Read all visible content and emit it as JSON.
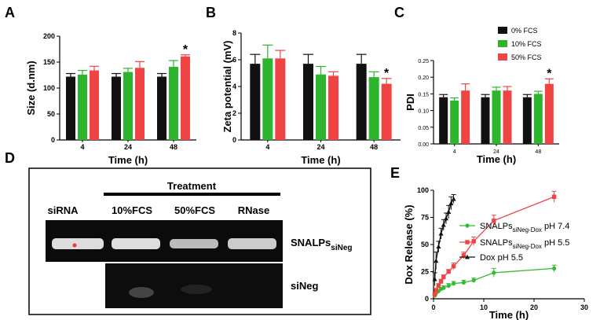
{
  "colors": {
    "fcs0": "#111111",
    "fcs10": "#2db52d",
    "fcs50": "#ee4444",
    "err": "#000000",
    "ph74": "#33bb33",
    "ph55": "#ee4444",
    "dox": "#111111"
  },
  "legend_abc": [
    "0% FCS",
    "10% FCS",
    "50% FCS"
  ],
  "chart_data": [
    {
      "panel": "A",
      "type": "bar",
      "xlabel": "Time (h)",
      "ylabel": "Size (d.nm)",
      "categories": [
        "4",
        "24",
        "48"
      ],
      "ylim": [
        0,
        200
      ],
      "yticks": [
        0,
        50,
        100,
        150,
        200
      ],
      "series": [
        {
          "name": "0% FCS",
          "values": [
            122,
            122,
            122
          ],
          "errors": [
            6,
            6,
            6
          ]
        },
        {
          "name": "10% FCS",
          "values": [
            126,
            131,
            141
          ],
          "errors": [
            8,
            7,
            12
          ]
        },
        {
          "name": "50% FCS",
          "values": [
            134,
            139,
            161
          ],
          "errors": [
            8,
            12,
            3
          ]
        }
      ],
      "annotation": {
        "text": "*",
        "category": "48",
        "series": "50% FCS"
      }
    },
    {
      "panel": "B",
      "type": "bar",
      "xlabel": "Time (h)",
      "ylabel": "Zeta potential (mV)",
      "categories": [
        "4",
        "24",
        "48"
      ],
      "ylim": [
        0,
        8
      ],
      "yticks": [
        0,
        2,
        4,
        6,
        8
      ],
      "series": [
        {
          "name": "0% FCS",
          "values": [
            5.7,
            5.7,
            5.7
          ],
          "errors": [
            0.7,
            0.7,
            0.7
          ]
        },
        {
          "name": "10% FCS",
          "values": [
            6.1,
            4.9,
            4.7
          ],
          "errors": [
            1.0,
            0.6,
            0.4
          ]
        },
        {
          "name": "50% FCS",
          "values": [
            6.1,
            4.8,
            4.2
          ],
          "errors": [
            0.6,
            0.3,
            0.4
          ]
        }
      ],
      "annotation": {
        "text": "*",
        "category": "48",
        "series": "50% FCS"
      }
    },
    {
      "panel": "C",
      "type": "bar",
      "xlabel": "Time (h)",
      "ylabel": "PDI",
      "categories": [
        "4",
        "24",
        "48"
      ],
      "ylim": [
        0,
        0.25
      ],
      "yticks": [
        0,
        0.05,
        0.1,
        0.15,
        0.2,
        0.25
      ],
      "ytick_labels": [
        "0.00",
        "0.05",
        "0.10",
        "0.15",
        "0.20",
        "0.25"
      ],
      "series": [
        {
          "name": "0% FCS",
          "values": [
            0.14,
            0.14,
            0.14
          ],
          "errors": [
            0.008,
            0.008,
            0.008
          ]
        },
        {
          "name": "10% FCS",
          "values": [
            0.13,
            0.16,
            0.15
          ],
          "errors": [
            0.008,
            0.01,
            0.008
          ]
        },
        {
          "name": "50% FCS",
          "values": [
            0.16,
            0.16,
            0.18
          ],
          "errors": [
            0.02,
            0.012,
            0.015
          ]
        }
      ],
      "annotation": {
        "text": "*",
        "category": "48",
        "series": "50% FCS"
      }
    },
    {
      "panel": "E",
      "type": "line",
      "xlabel": "Time (h)",
      "ylabel": "Dox Release (%)",
      "xlim": [
        0,
        30
      ],
      "ylim": [
        0,
        100
      ],
      "xticks": [
        0,
        10,
        20,
        30
      ],
      "yticks": [
        0,
        25,
        50,
        75,
        100
      ],
      "series": [
        {
          "name": "SNALPs pH 7.4",
          "label_main": "SNALPs",
          "label_sub": "siNeg-Dox",
          "label_suffix": " pH 7.4",
          "marker": "circle",
          "x": [
            0.25,
            0.5,
            1,
            1.5,
            2,
            3,
            4,
            6,
            8,
            12,
            24
          ],
          "y": [
            3,
            5,
            7,
            9,
            10,
            12,
            14,
            15,
            17,
            24,
            28
          ],
          "errors": [
            1,
            1,
            1,
            1,
            2,
            2,
            2,
            2,
            2,
            4,
            3
          ]
        },
        {
          "name": "SNALPs pH 5.5",
          "label_main": "SNALPs",
          "label_sub": "siNeg-Dox",
          "label_suffix": " pH 5.5",
          "marker": "square",
          "x": [
            0.25,
            0.5,
            1,
            1.5,
            2,
            3,
            4,
            6,
            8,
            12,
            24
          ],
          "y": [
            4,
            8,
            12,
            16,
            20,
            25,
            30,
            40,
            53,
            72,
            94
          ],
          "errors": [
            1,
            1,
            2,
            2,
            2,
            2,
            3,
            3,
            4,
            5,
            5
          ]
        },
        {
          "name": "Dox pH 5.5",
          "label_main": "Dox pH 5.5",
          "label_sub": "",
          "label_suffix": "",
          "marker": "triangle",
          "x": [
            0.25,
            0.5,
            1,
            1.5,
            2,
            2.5,
            3,
            3.5,
            4
          ],
          "y": [
            18,
            35,
            48,
            60,
            68,
            74,
            80,
            88,
            92
          ],
          "errors": [
            6,
            8,
            5,
            5,
            5,
            5,
            6,
            6,
            4
          ]
        }
      ]
    }
  ],
  "panel_d": {
    "letter": "D",
    "header": "Treatment",
    "lanes": [
      "siRNA",
      "10%FCS",
      "50%FCS",
      "RNase"
    ],
    "row_labels": [
      {
        "main": "SNALPs",
        "sub": "siNeg"
      },
      {
        "main": "siNeg",
        "sub": ""
      }
    ],
    "band_intensity": {
      "row1": [
        0.85,
        0.9,
        0.7,
        0.8
      ],
      "row2": [
        0,
        0.12,
        0.06,
        0.04
      ]
    }
  }
}
